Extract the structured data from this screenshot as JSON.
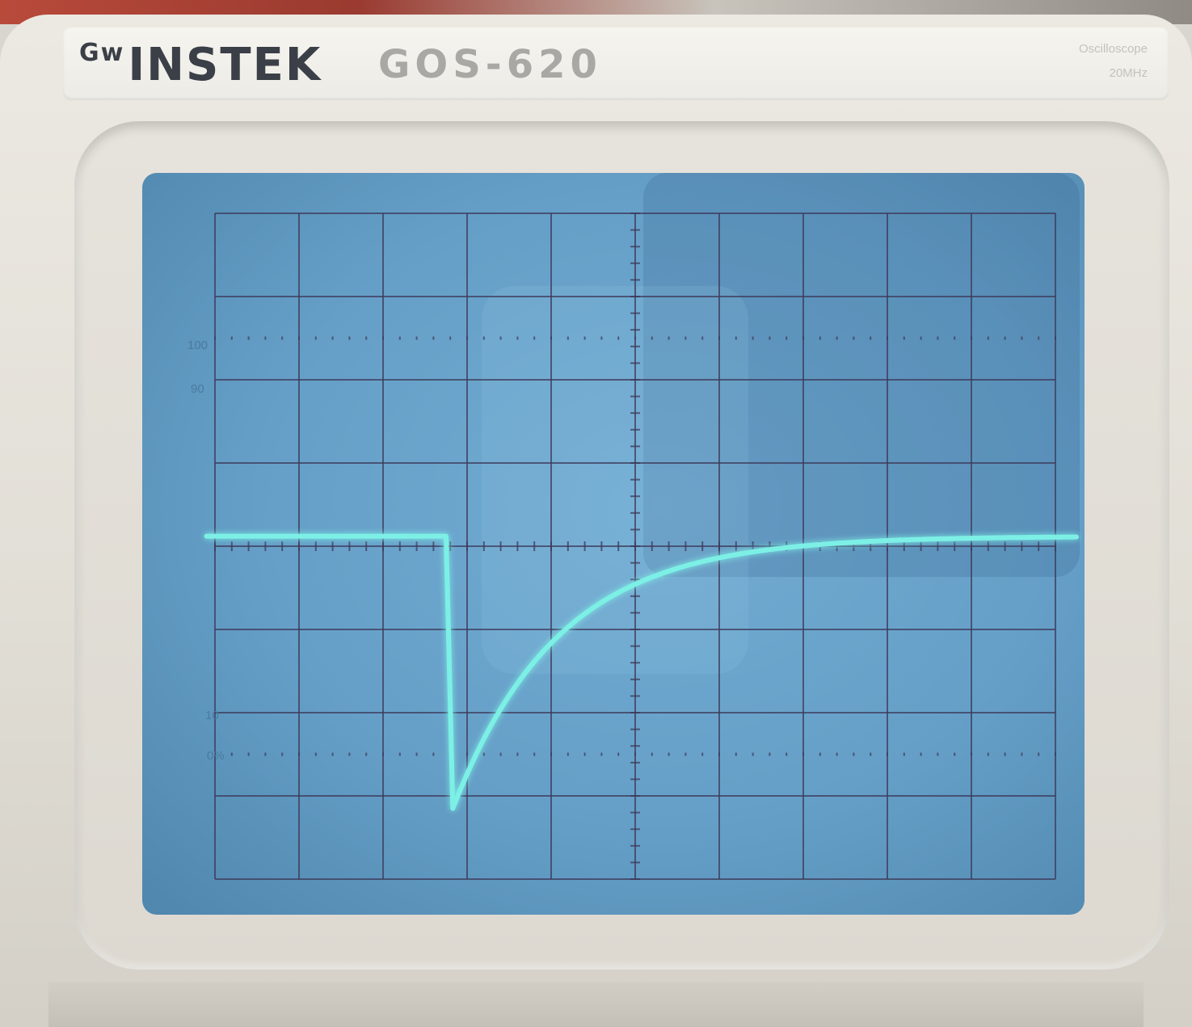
{
  "brand": {
    "logo_mark": "Gw",
    "name": "INSTEK"
  },
  "model": "GOS-620",
  "instrument_type": "Oscilloscope",
  "bandwidth": "20MHz",
  "graticule_labels": {
    "level_100": "100",
    "level_90": "90",
    "level_10": "10",
    "level_0": "0%"
  },
  "colors": {
    "trace": "#7df0e6",
    "screen": "#6aa6cf",
    "grid_lines": "#3d3a5a",
    "bezel": "#e6e3dc"
  },
  "trace": {
    "units": "divisions",
    "baseline_level": 0.12,
    "step_at": 2.75,
    "dip_level": -3.1,
    "time_constant": 1.25,
    "end_at": 10.0
  }
}
